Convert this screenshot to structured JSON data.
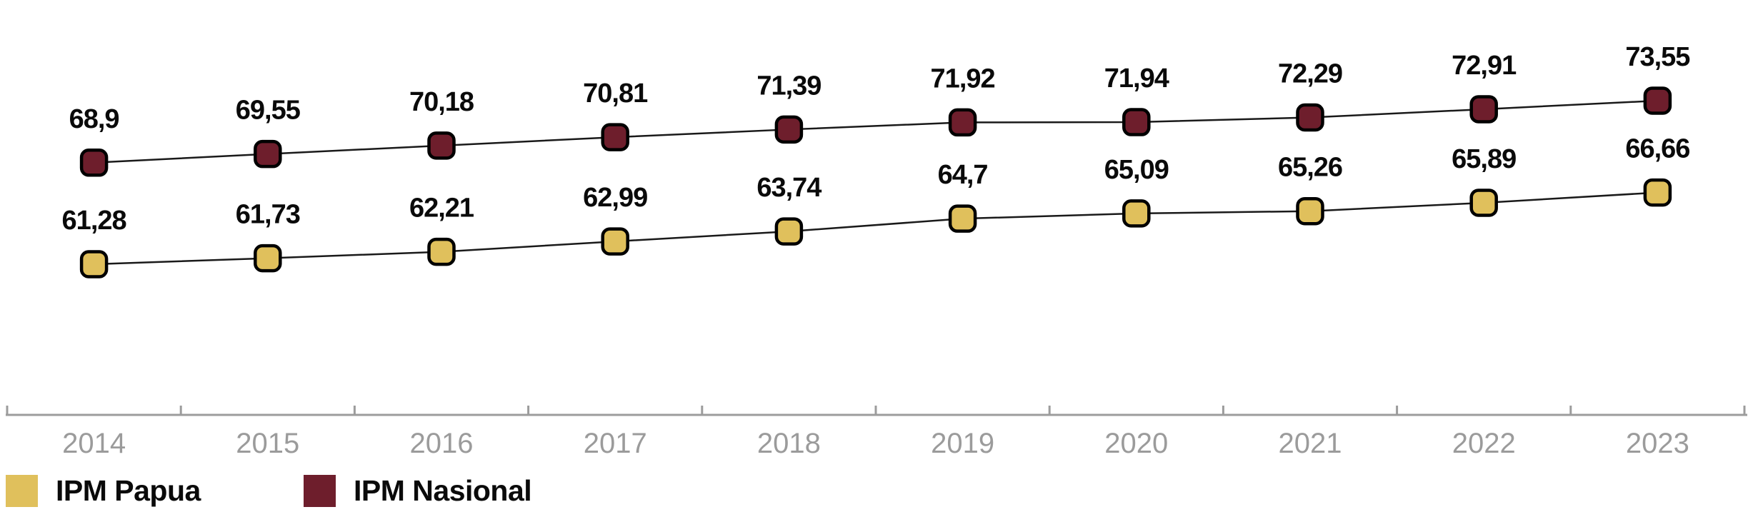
{
  "chart_data": {
    "type": "line",
    "title": "",
    "xlabel": "",
    "ylabel": "",
    "x_categories": [
      "2014",
      "2015",
      "2016",
      "2017",
      "2018",
      "2019",
      "2020",
      "2021",
      "2022",
      "2023"
    ],
    "series": [
      {
        "name": "IPM Papua",
        "color": "#E0C05C",
        "values": [
          61.28,
          61.73,
          62.21,
          62.99,
          63.74,
          64.7,
          65.09,
          65.26,
          65.89,
          66.66
        ],
        "labels": [
          "61,28",
          "61,73",
          "62,21",
          "62,99",
          "63,74",
          "64,7",
          "65,09",
          "65,26",
          "65,89",
          "66,66"
        ]
      },
      {
        "name": "IPM Nasional",
        "color": "#6E1E2C",
        "values": [
          68.9,
          69.55,
          70.18,
          70.81,
          71.39,
          71.92,
          71.94,
          72.29,
          72.91,
          73.55
        ],
        "labels": [
          "68,9",
          "69,55",
          "70,18",
          "70,81",
          "71,39",
          "71,92",
          "71,94",
          "72,29",
          "72,91",
          "73,55"
        ]
      }
    ],
    "marker_shape": "rounded-square",
    "marker_border_color": "#000000",
    "line_color": "#1A1A1A",
    "axis_color": "#9C9C9C",
    "tick_label_color": "#9B9B9B",
    "data_label_color": "#0A0A0A",
    "grid": false,
    "y_axis_visible": false,
    "legend_position": "bottom-left"
  }
}
